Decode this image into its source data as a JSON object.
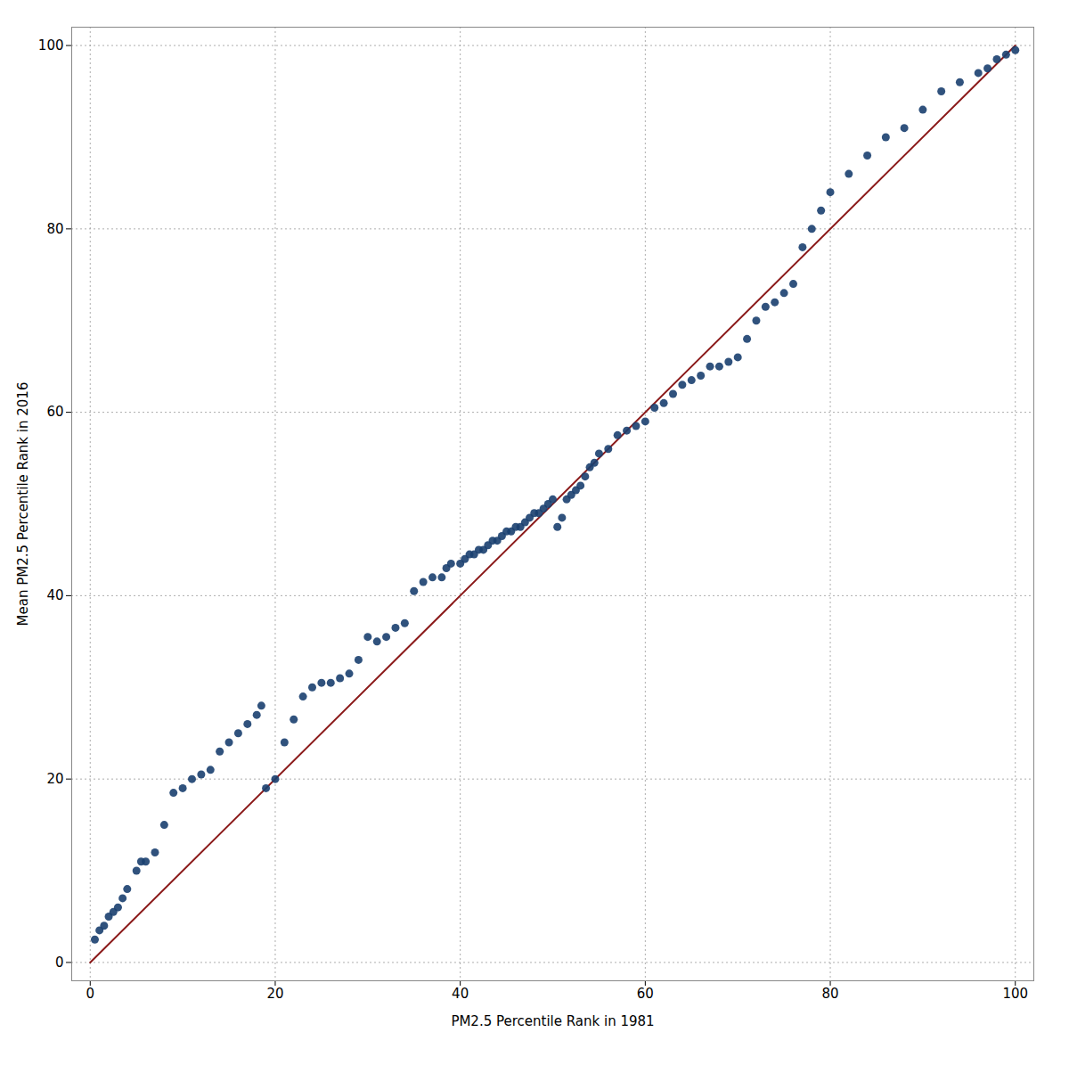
{
  "chart_data": {
    "type": "scatter",
    "xlabel": "PM2.5 Percentile Rank in 1981",
    "ylabel": "Mean PM2.5 Percentile Rank in 2016",
    "xlim": [
      -2,
      102
    ],
    "ylim": [
      -2,
      102
    ],
    "xticks": [
      0,
      20,
      40,
      60,
      80,
      100
    ],
    "yticks": [
      0,
      20,
      40,
      60,
      80,
      100
    ],
    "grid": true,
    "series": [
      {
        "type": "scatter",
        "color": "#1a3f6f",
        "marker": "circle",
        "x": [
          0.5,
          1.0,
          1.5,
          2.0,
          2.5,
          3.0,
          3.5,
          4.0,
          5.0,
          5.5,
          6.0,
          7.0,
          8.0,
          9.0,
          10.0,
          11.0,
          12.0,
          13.0,
          14.0,
          15.0,
          16.0,
          17.0,
          18.0,
          18.5,
          19.0,
          20.0,
          21.0,
          22.0,
          23.0,
          24.0,
          25.0,
          26.0,
          27.0,
          28.0,
          29.0,
          30.0,
          31.0,
          32.0,
          33.0,
          34.0,
          35.0,
          36.0,
          37.0,
          38.0,
          38.5,
          39.0,
          40.0,
          40.5,
          41.0,
          41.5,
          42.0,
          42.5,
          43.0,
          43.5,
          44.0,
          44.5,
          45.0,
          45.5,
          46.0,
          46.5,
          47.0,
          47.5,
          48.0,
          48.5,
          49.0,
          49.5,
          50.0,
          50.5,
          51.0,
          51.5,
          52.0,
          52.5,
          53.0,
          53.5,
          54.0,
          54.5,
          55.0,
          56.0,
          57.0,
          58.0,
          59.0,
          60.0,
          61.0,
          62.0,
          63.0,
          64.0,
          65.0,
          66.0,
          67.0,
          68.0,
          69.0,
          70.0,
          71.0,
          72.0,
          73.0,
          74.0,
          75.0,
          76.0,
          77.0,
          78.0,
          79.0,
          80.0,
          82.0,
          84.0,
          86.0,
          88.0,
          90.0,
          92.0,
          94.0,
          96.0,
          97.0,
          98.0,
          99.0,
          100.0
        ],
        "values": [
          2.5,
          3.5,
          4.0,
          5.0,
          5.5,
          6.0,
          7.0,
          8.0,
          10.0,
          11.0,
          11.0,
          12.0,
          15.0,
          18.5,
          19.0,
          20.0,
          20.5,
          21.0,
          23.0,
          24.0,
          25.0,
          26.0,
          27.0,
          28.0,
          19.0,
          20.0,
          24.0,
          26.5,
          29.0,
          30.0,
          30.5,
          30.5,
          31.0,
          31.5,
          33.0,
          35.5,
          35.0,
          35.5,
          36.5,
          37.0,
          40.5,
          41.5,
          42.0,
          42.0,
          43.0,
          43.5,
          43.5,
          44.0,
          44.5,
          44.5,
          45.0,
          45.0,
          45.5,
          46.0,
          46.0,
          46.5,
          47.0,
          47.0,
          47.5,
          47.5,
          48.0,
          48.5,
          49.0,
          49.0,
          49.5,
          50.0,
          50.5,
          47.5,
          48.5,
          50.5,
          51.0,
          51.5,
          52.0,
          53.0,
          54.0,
          54.5,
          55.5,
          56.0,
          57.5,
          58.0,
          58.5,
          59.0,
          60.5,
          61.0,
          62.0,
          63.0,
          63.5,
          64.0,
          65.0,
          65.0,
          65.5,
          66.0,
          68.0,
          70.0,
          71.5,
          72.0,
          73.0,
          74.0,
          78.0,
          80.0,
          82.0,
          84.0,
          86.0,
          88.0,
          90.0,
          91.0,
          93.0,
          95.0,
          96.0,
          97.0,
          97.5,
          98.5,
          99.0,
          99.5
        ]
      },
      {
        "type": "line",
        "color": "#8b1a1a",
        "line_style": "solid",
        "x": [
          0,
          100
        ],
        "values": [
          0,
          100
        ]
      }
    ]
  }
}
